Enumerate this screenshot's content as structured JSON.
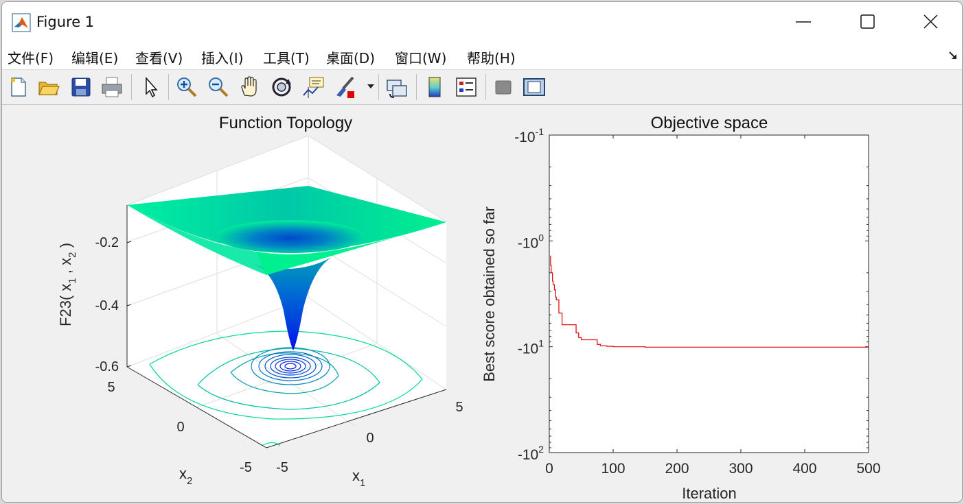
{
  "window": {
    "title": "Figure 1"
  },
  "menu": [
    {
      "label": "文件(F)"
    },
    {
      "label": "编辑(E)"
    },
    {
      "label": "查看(V)"
    },
    {
      "label": "插入(I)"
    },
    {
      "label": "工具(T)"
    },
    {
      "label": "桌面(D)"
    },
    {
      "label": "窗口(W)"
    },
    {
      "label": "帮助(H)"
    }
  ],
  "toolbar": {
    "icons": [
      "new-figure-icon",
      "open-file-icon",
      "save-icon",
      "print-icon",
      "pointer-icon",
      "zoom-in-icon",
      "zoom-out-icon",
      "pan-hand-icon",
      "rotate-3d-icon",
      "data-cursor-icon",
      "brush-icon",
      "link-plot-icon",
      "colorbar-icon",
      "legend-icon",
      "hide-plot-tools-icon",
      "show-plot-tools-icon"
    ]
  },
  "chart_data": [
    {
      "type": "surface",
      "title": "Function Topology",
      "zlabel": "F23( x",
      "zlabel_sub1": "1",
      "zlabel_mid": " , x",
      "zlabel_sub2": "2",
      "zlabel_end": " )",
      "xlabel": "x",
      "xlabel_sub": "1",
      "ylabel": "x",
      "ylabel_sub": "2",
      "xticks": [
        "-5",
        "0",
        "5"
      ],
      "yticks": [
        "-5",
        "0",
        "5"
      ],
      "zticks": [
        "-0.2",
        "-0.4",
        "-0.6"
      ],
      "zlim": [
        -0.6,
        -0.1
      ],
      "colormap": [
        "#0010e0",
        "#0070c0",
        "#00c0a0",
        "#00ff90"
      ]
    },
    {
      "type": "line",
      "title": "Objective space",
      "xlabel": "Iteration",
      "ylabel": "Best score obtained so far",
      "xlim": [
        0,
        500
      ],
      "xticks": [
        "0",
        "100",
        "200",
        "300",
        "400",
        "500"
      ],
      "yscale": "log",
      "yticks": [
        {
          "base": "-10",
          "exp": "-1"
        },
        {
          "base": "-10",
          "exp": "0"
        },
        {
          "base": "-10",
          "exp": "1"
        },
        {
          "base": "-10",
          "exp": "2"
        }
      ],
      "series": [
        {
          "color": "#e00000",
          "x": [
            1,
            2,
            3,
            5,
            6,
            8,
            10,
            11,
            13,
            15,
            17,
            20,
            22,
            26,
            30,
            38,
            42,
            46,
            50,
            60,
            70,
            75,
            80,
            90,
            100,
            120,
            150,
            200,
            300,
            400,
            500
          ],
          "y": [
            -1.4,
            -1.7,
            -2.0,
            -2.4,
            -2.6,
            -2.9,
            -3.4,
            -3.6,
            -3.6,
            -4.8,
            -4.8,
            -6.2,
            -6.2,
            -6.2,
            -6.2,
            -6.2,
            -7.4,
            -8.2,
            -8.6,
            -8.6,
            -8.6,
            -9.5,
            -9.8,
            -9.9,
            -10.0,
            -10.0,
            -10.1,
            -10.1,
            -10.1,
            -10.1,
            -10.1
          ]
        }
      ]
    }
  ]
}
